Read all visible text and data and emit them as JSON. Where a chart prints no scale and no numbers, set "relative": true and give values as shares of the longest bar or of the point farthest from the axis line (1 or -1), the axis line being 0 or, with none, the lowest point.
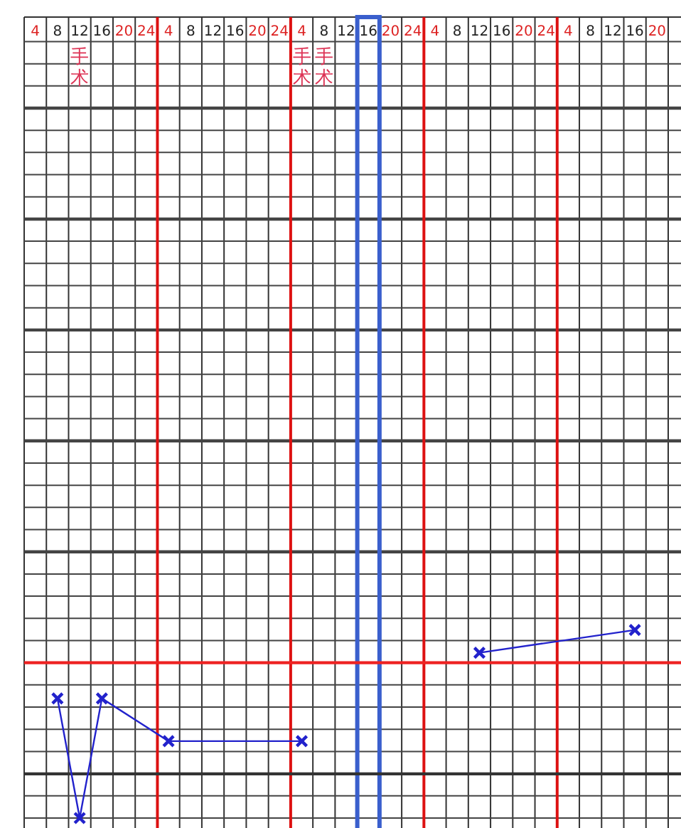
{
  "chart_data": {
    "type": "line",
    "relative": true,
    "categories": [
      "4",
      "8",
      "12",
      "16",
      "20",
      "24",
      "4",
      "8",
      "12",
      "16",
      "20",
      "24",
      "4",
      "8",
      "12",
      "16",
      "20",
      "24",
      "4",
      "8",
      "12",
      "16",
      "20",
      "24",
      "4",
      "8",
      "12",
      "16",
      "20"
    ],
    "series": [
      {
        "color": "#2222cc",
        "values": [
          null,
          0.636,
          0,
          0.636,
          null,
          null,
          0.409,
          null,
          null,
          null,
          null,
          null,
          0.409,
          null,
          null,
          null,
          null,
          null,
          null,
          null,
          null,
          null,
          null,
          null,
          null,
          null,
          null,
          null,
          null
        ]
      },
      {
        "color": "#2222cc",
        "values": [
          null,
          null,
          null,
          null,
          null,
          null,
          null,
          null,
          null,
          null,
          null,
          null,
          null,
          null,
          null,
          null,
          null,
          null,
          null,
          null,
          0.879,
          null,
          null,
          null,
          null,
          null,
          null,
          1,
          null
        ]
      }
    ],
    "marker": "cross",
    "line_style": "solid",
    "grid": true,
    "tick_labels": "x",
    "ref_lines": [
      {
        "axis": "y",
        "value": 0.826,
        "color": "#ee2222"
      },
      {
        "axis": "y",
        "value": 0.235,
        "color": "#333333"
      }
    ],
    "annotations": [
      "手术",
      "手术",
      "手术"
    ]
  }
}
